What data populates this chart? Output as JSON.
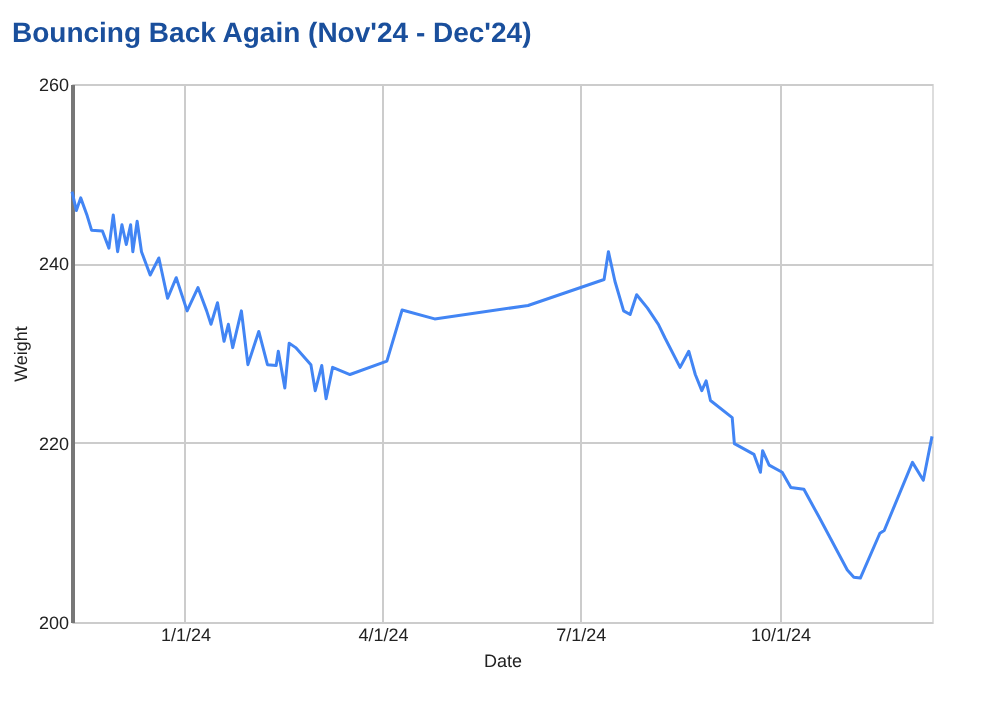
{
  "chart_data": {
    "type": "line",
    "title": "Bouncing Back Again (Nov'24 - Dec'24)",
    "xlabel": "Date",
    "ylabel": "Weight",
    "x": [
      "2023-11-10",
      "2023-11-12",
      "2023-11-14",
      "2023-11-17",
      "2023-11-19",
      "2023-11-24",
      "2023-11-27",
      "2023-11-29",
      "2023-12-01",
      "2023-12-03",
      "2023-12-05",
      "2023-12-07",
      "2023-12-08",
      "2023-12-10",
      "2023-12-12",
      "2023-12-16",
      "2023-12-20",
      "2023-12-24",
      "2023-12-28",
      "2024-01-02",
      "2024-01-07",
      "2024-01-11",
      "2024-01-13",
      "2024-01-16",
      "2024-01-19",
      "2024-01-21",
      "2024-01-23",
      "2024-01-27",
      "2024-01-30",
      "2024-02-04",
      "2024-02-08",
      "2024-02-12",
      "2024-02-13",
      "2024-02-16",
      "2024-02-18",
      "2024-02-21",
      "2024-02-28",
      "2024-03-01",
      "2024-03-04",
      "2024-03-06",
      "2024-03-09",
      "2024-03-17",
      "2024-04-03",
      "2024-04-10",
      "2024-04-25",
      "2024-06-07",
      "2024-07-12",
      "2024-07-14",
      "2024-07-17",
      "2024-07-21",
      "2024-07-24",
      "2024-07-27",
      "2024-08-01",
      "2024-08-06",
      "2024-08-09",
      "2024-08-16",
      "2024-08-20",
      "2024-08-23",
      "2024-08-26",
      "2024-08-28",
      "2024-08-30",
      "2024-09-09",
      "2024-09-10",
      "2024-09-19",
      "2024-09-22",
      "2024-09-23",
      "2024-09-26",
      "2024-10-02",
      "2024-10-06",
      "2024-10-12",
      "2024-10-19",
      "2024-11-01",
      "2024-11-04",
      "2024-11-07",
      "2024-11-16",
      "2024-11-18",
      "2024-12-01",
      "2024-12-06",
      "2024-12-10"
    ],
    "series": [
      {
        "color": "#4285f4",
        "values": [
          248.0,
          245.9,
          247.3,
          245.3,
          243.7,
          243.6,
          241.7,
          245.4,
          241.3,
          244.3,
          242.1,
          244.3,
          241.3,
          244.7,
          241.3,
          238.7,
          240.6,
          236.1,
          238.4,
          234.7,
          237.3,
          234.7,
          233.2,
          235.6,
          231.3,
          233.2,
          230.6,
          234.7,
          228.7,
          232.4,
          228.7,
          228.6,
          230.2,
          226.1,
          231.1,
          230.6,
          228.7,
          225.8,
          228.6,
          224.9,
          228.4,
          227.6,
          229.1,
          234.8,
          233.8,
          235.3,
          238.2,
          241.3,
          238.0,
          234.7,
          234.3,
          236.5,
          235.0,
          233.2,
          231.7,
          228.4,
          230.2,
          227.6,
          225.8,
          226.9,
          224.7,
          222.8,
          219.9,
          218.7,
          216.7,
          219.1,
          217.5,
          216.7,
          215.0,
          214.8,
          211.7,
          205.8,
          205.0,
          204.9,
          209.9,
          210.2,
          217.8,
          215.8,
          220.7
        ]
      }
    ],
    "xlim": [
      "2023-11-10",
      "2024-12-10"
    ],
    "xticks": [
      {
        "value": "2024-01-01",
        "label": "1/1/24"
      },
      {
        "value": "2024-04-01",
        "label": "4/1/24"
      },
      {
        "value": "2024-07-01",
        "label": "7/1/24"
      },
      {
        "value": "2024-10-01",
        "label": "10/1/24"
      }
    ],
    "ylim": [
      200,
      260
    ],
    "yticks": [
      200,
      220,
      240,
      260
    ],
    "grid": true,
    "line_style": "solid",
    "marker": "none"
  }
}
